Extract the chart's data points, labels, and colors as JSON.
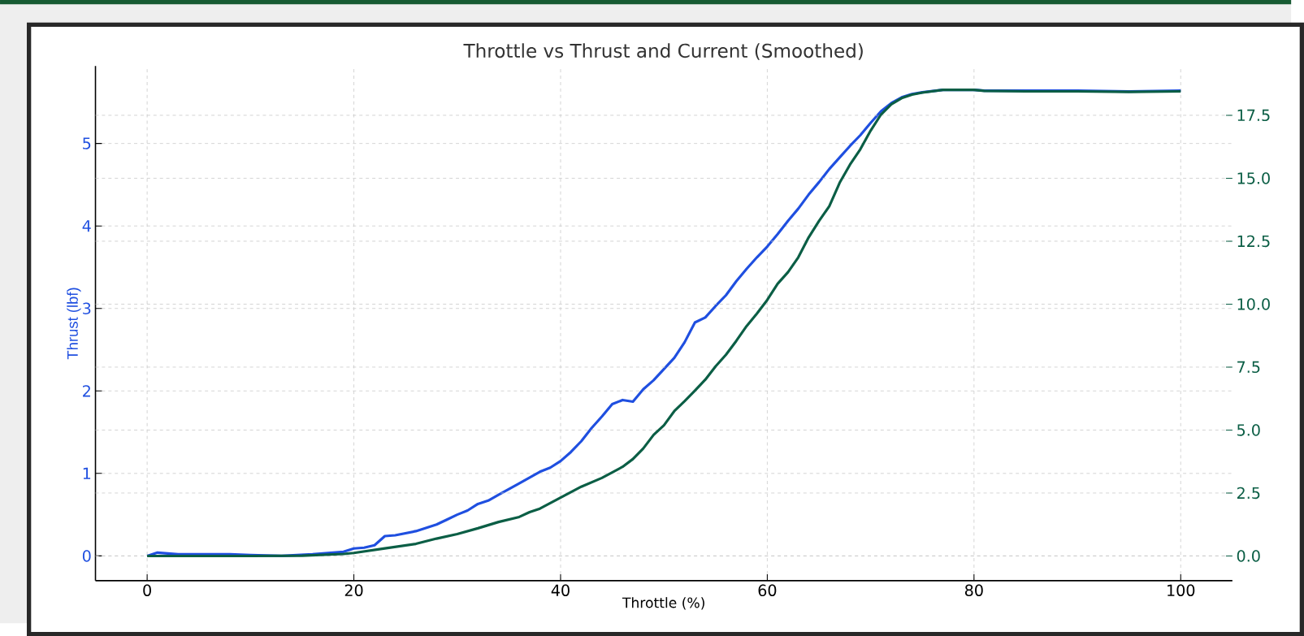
{
  "chart_data": {
    "type": "line",
    "title": "Throttle vs Thrust and Current (Smoothed)",
    "xlabel": "Throttle (%)",
    "ylabel": "Thrust (lbf)",
    "xlim": [
      -5,
      105
    ],
    "xticks": [
      0,
      20,
      40,
      60,
      80,
      100
    ],
    "ylim": [
      -0.3,
      5.94
    ],
    "yticks": [
      0,
      1,
      2,
      3,
      4,
      5
    ],
    "y2lim": [
      -0.98,
      19.46
    ],
    "y2ticks": [
      {
        "value": 0,
        "label": "0.0"
      },
      {
        "value": 2.5,
        "label": "2.5"
      },
      {
        "value": 5,
        "label": "5.0"
      },
      {
        "value": 7.5,
        "label": "7.5"
      },
      {
        "value": 10,
        "label": "10.0"
      },
      {
        "value": 12.5,
        "label": "12.5"
      },
      {
        "value": 15,
        "label": "15.0"
      },
      {
        "value": 17.5,
        "label": "17.5"
      }
    ],
    "grid": true,
    "marker": "none",
    "line_style": "solid",
    "series": [
      {
        "color": "#1f4fe0",
        "x": [
          0,
          1,
          3,
          5,
          8,
          10,
          13,
          16,
          19,
          20,
          21,
          22,
          23,
          24,
          26,
          28,
          29,
          30,
          31,
          32,
          33,
          34,
          36,
          38,
          39,
          40,
          41,
          42,
          43,
          44,
          45,
          46,
          47,
          48,
          49,
          51,
          52,
          53,
          54,
          55,
          56,
          57,
          58,
          59,
          60,
          61,
          62,
          63,
          64,
          65,
          66,
          67,
          68,
          69,
          70,
          71,
          72,
          73,
          74,
          75,
          77,
          80,
          81,
          90,
          95,
          100
        ],
        "values": [
          0,
          0.04,
          0.02,
          0.02,
          0.02,
          0.01,
          0.0,
          0.02,
          0.05,
          0.09,
          0.1,
          0.13,
          0.24,
          0.25,
          0.3,
          0.38,
          0.44,
          0.5,
          0.55,
          0.63,
          0.67,
          0.74,
          0.88,
          1.02,
          1.07,
          1.15,
          1.26,
          1.39,
          1.55,
          1.69,
          1.84,
          1.89,
          1.87,
          2.02,
          2.13,
          2.4,
          2.59,
          2.83,
          2.89,
          3.03,
          3.16,
          3.33,
          3.48,
          3.62,
          3.75,
          3.9,
          4.06,
          4.21,
          4.38,
          4.53,
          4.69,
          4.83,
          4.97,
          5.1,
          5.25,
          5.39,
          5.49,
          5.56,
          5.6,
          5.62,
          5.65,
          5.65,
          5.64,
          5.64,
          5.63,
          5.64
        ]
      },
      {
        "color": "#0b5e45",
        "axis": "y2",
        "x": [
          0,
          5,
          10,
          15,
          19,
          20,
          23,
          26,
          28,
          30,
          32,
          34,
          36,
          37,
          38,
          40,
          42,
          44,
          46,
          47,
          48,
          49,
          50,
          51,
          52,
          53,
          54,
          55,
          56,
          57,
          58,
          59,
          60,
          61,
          62,
          63,
          64,
          65,
          66,
          67,
          68,
          69,
          70,
          71,
          72,
          73,
          74,
          75,
          77,
          80,
          81,
          85,
          90,
          95,
          100
        ],
        "values": [
          0,
          0,
          0,
          0.01,
          0.08,
          0.12,
          0.3,
          0.48,
          0.69,
          0.87,
          1.1,
          1.35,
          1.55,
          1.74,
          1.88,
          2.32,
          2.75,
          3.1,
          3.54,
          3.85,
          4.27,
          4.81,
          5.19,
          5.75,
          6.15,
          6.57,
          7.0,
          7.53,
          7.99,
          8.54,
          9.13,
          9.63,
          10.17,
          10.81,
          11.27,
          11.86,
          12.65,
          13.3,
          13.89,
          14.82,
          15.54,
          16.15,
          16.89,
          17.53,
          17.94,
          18.18,
          18.32,
          18.4,
          18.51,
          18.51,
          18.47,
          18.45,
          18.45,
          18.43,
          18.45
        ]
      }
    ]
  }
}
